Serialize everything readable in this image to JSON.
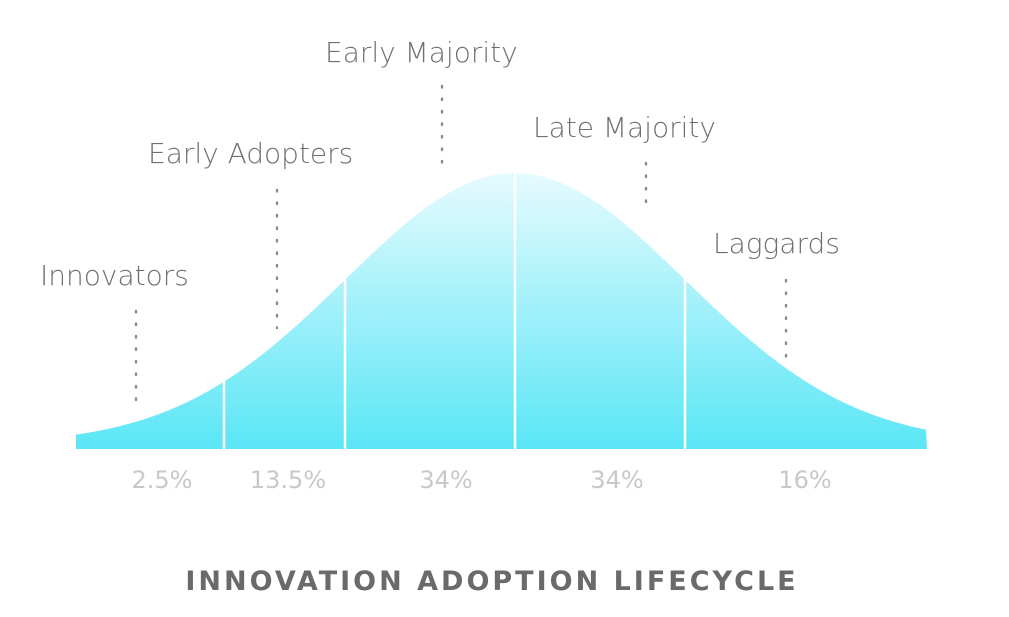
{
  "title": "INNOVATION ADOPTION LIFECYCLE",
  "colors": {
    "curve_top": "#e6fbfe",
    "curve_bottom": "#5ae6f6",
    "label": "#6f6f6f",
    "percent": "#c8c8c8",
    "title": "#6a6a6a"
  },
  "segments": [
    {
      "name": "Innovators",
      "percent": "2.5%"
    },
    {
      "name": "Early Adopters",
      "percent": "13.5%"
    },
    {
      "name": "Early Majority",
      "percent": "34%"
    },
    {
      "name": "Late Majority",
      "percent": "34%"
    },
    {
      "name": "Laggards",
      "percent": "16%"
    }
  ]
}
